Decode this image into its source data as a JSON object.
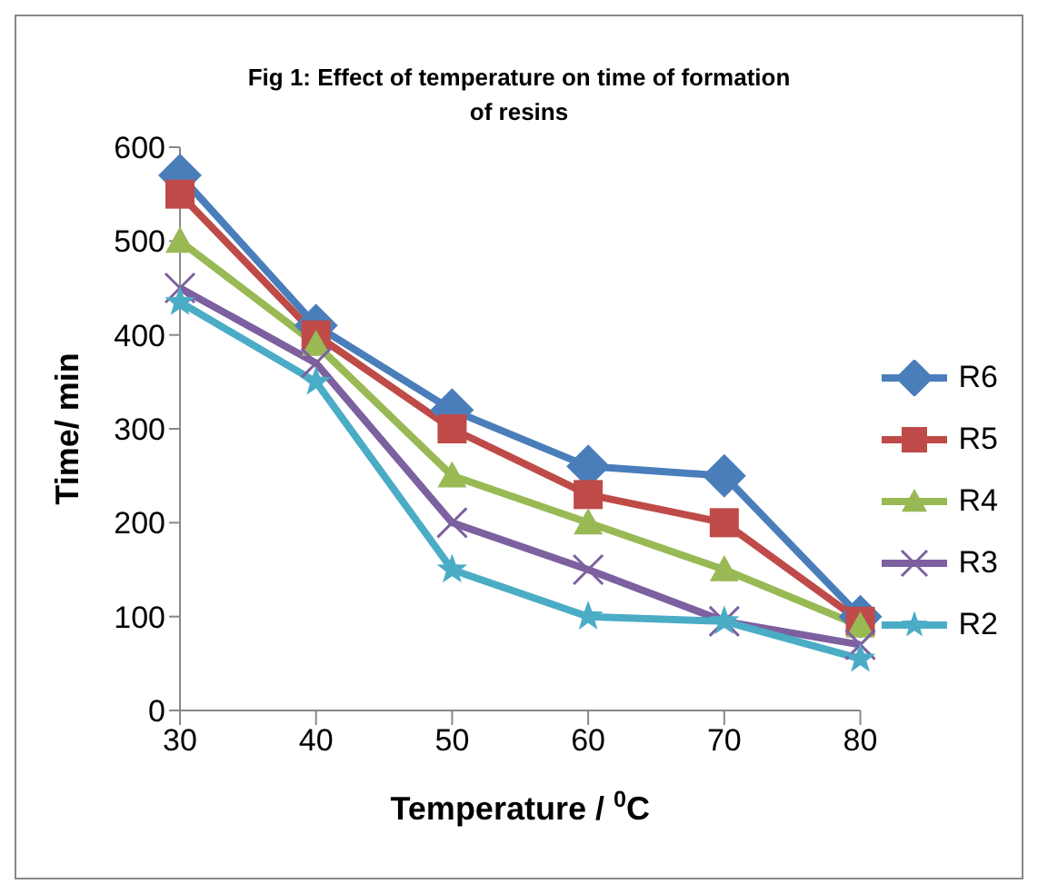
{
  "chart_data": {
    "type": "line",
    "title": "Fig 1: Effect of temperature on time of formation of resins",
    "xlabel": "Temperature / $^{0}$C",
    "ylabel": "Time/ min",
    "categories": [
      "30",
      "40",
      "50",
      "60",
      "70",
      "80"
    ],
    "ylim": [
      0,
      600
    ],
    "yticks": [
      0,
      100,
      200,
      300,
      400,
      500,
      600
    ],
    "grid": false,
    "legend": "right",
    "series": [
      {
        "name": "R6",
        "color": "#4a7ebb",
        "marker": "diamond",
        "values": [
          570,
          410,
          320,
          260,
          250,
          100
        ]
      },
      {
        "name": "R5",
        "color": "#be4b48",
        "marker": "square",
        "values": [
          550,
          400,
          300,
          230,
          200,
          95
        ]
      },
      {
        "name": "R4",
        "color": "#98b954",
        "marker": "triangle",
        "values": [
          500,
          390,
          250,
          200,
          150,
          90
        ]
      },
      {
        "name": "R3",
        "color": "#7d60a0",
        "marker": "cross",
        "values": [
          450,
          370,
          200,
          150,
          95,
          70
        ]
      },
      {
        "name": "R2",
        "color": "#4bacc6",
        "marker": "star",
        "values": [
          435,
          350,
          150,
          100,
          95,
          55
        ]
      }
    ]
  }
}
